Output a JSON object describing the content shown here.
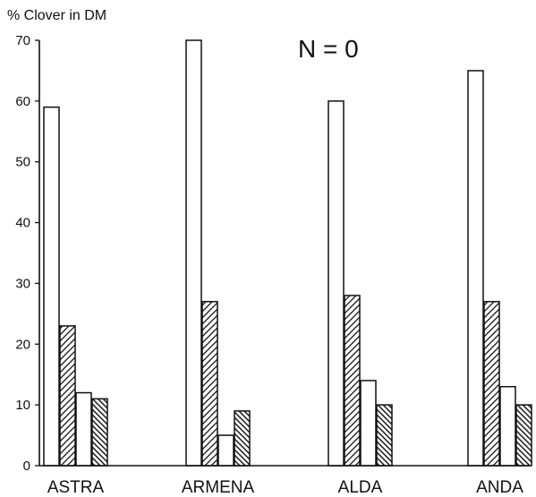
{
  "chart_data": {
    "type": "bar",
    "title": "",
    "ylabel": "% Clover in DM",
    "xlabel": "",
    "annotation": "N = 0",
    "categories": [
      "ASTRA",
      "ARMENA",
      "ALDA",
      "ANDA"
    ],
    "yticks": [
      "0",
      "10",
      "20",
      "30",
      "40",
      "50",
      "60",
      "70"
    ],
    "ylim": [
      0,
      70
    ],
    "grid": false,
    "legend": "none",
    "series": [
      {
        "pattern": "blank",
        "values": [
          59,
          70,
          60,
          65
        ]
      },
      {
        "pattern": "hatch-right",
        "values": [
          23,
          27,
          28,
          27
        ]
      },
      {
        "pattern": "blank",
        "values": [
          12,
          5,
          14,
          13
        ]
      },
      {
        "pattern": "hatch-left",
        "values": [
          11,
          9,
          10,
          10
        ]
      }
    ],
    "colors": {
      "ink": "#111111",
      "fill": "#ffffff"
    }
  }
}
